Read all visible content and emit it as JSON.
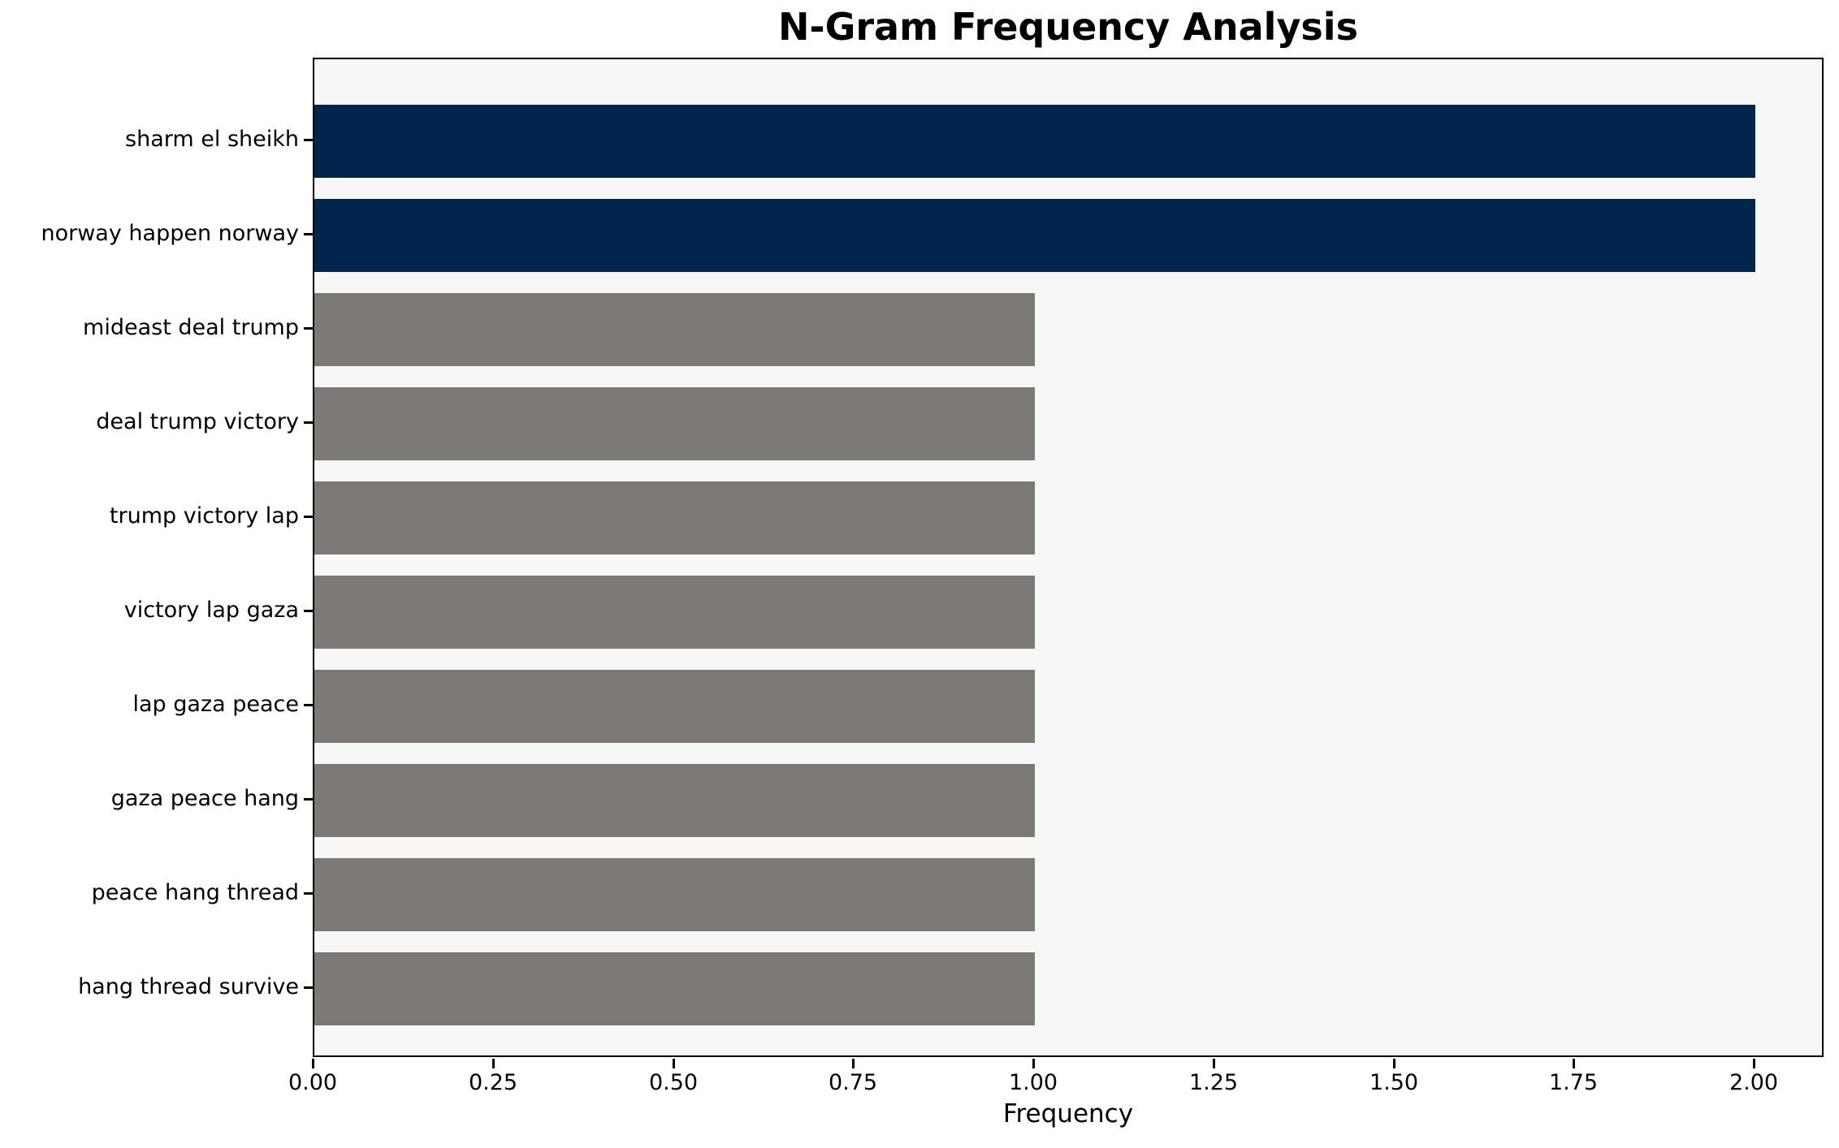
{
  "title": "N-Gram Frequency Analysis",
  "x_axis_label": "Frequency",
  "colors": {
    "highlight_bar": "#02254e",
    "normal_bar": "#7b7a77",
    "plot_background": "#f7f7f7",
    "figure_background": "#ffffff",
    "spine": "#000000",
    "text": "#000000"
  },
  "chart_data": {
    "type": "bar",
    "orientation": "horizontal",
    "title": "N-Gram Frequency Analysis",
    "xlabel": "Frequency",
    "ylabel": "",
    "categories": [
      "sharm el sheikh",
      "norway happen norway",
      "mideast deal trump",
      "deal trump victory",
      "trump victory lap",
      "victory lap gaza",
      "lap gaza peace",
      "gaza peace hang",
      "peace hang thread",
      "hang thread survive"
    ],
    "values": [
      2,
      2,
      1,
      1,
      1,
      1,
      1,
      1,
      1,
      1
    ],
    "bar_colors": [
      "#02254e",
      "#02254e",
      "#7b7a77",
      "#7b7a77",
      "#7b7a77",
      "#7b7a77",
      "#7b7a77",
      "#7b7a77",
      "#7b7a77",
      "#7b7a77"
    ],
    "xlim": [
      0.0,
      2.1
    ],
    "xticks": [
      0.0,
      0.25,
      0.5,
      0.75,
      1.0,
      1.25,
      1.5,
      1.75,
      2.0
    ],
    "xtick_labels": [
      "0.00",
      "0.25",
      "0.50",
      "0.75",
      "1.00",
      "1.25",
      "1.50",
      "1.75",
      "2.00"
    ],
    "grid": false,
    "legend": null
  }
}
